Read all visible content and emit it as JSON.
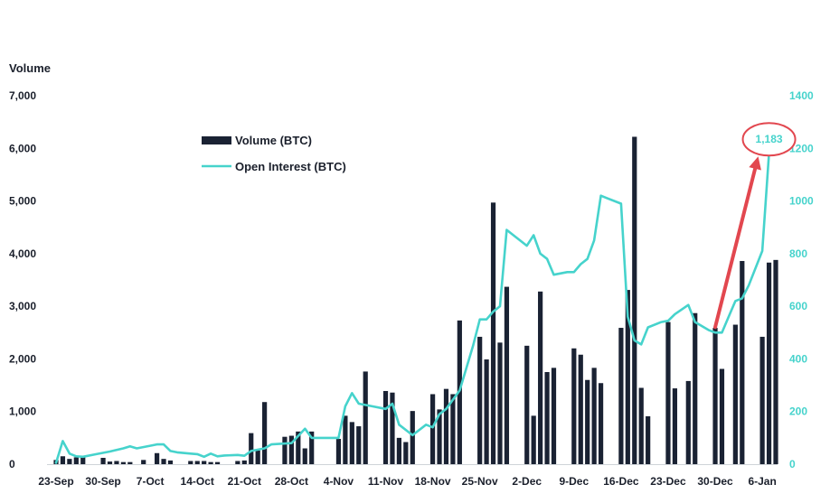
{
  "chart_data": {
    "type": "bar+line",
    "ylabel_left": "Volume",
    "ylim_left": [
      0,
      7000
    ],
    "yticks_left": [
      "0",
      "1,000",
      "2,000",
      "3,000",
      "4,000",
      "5,000",
      "6,000",
      "7,000"
    ],
    "ylim_right": [
      0,
      1400
    ],
    "yticks_right": [
      "0",
      "200",
      "400",
      "600",
      "800",
      "1000",
      "1200",
      "1400"
    ],
    "x_range_days": [
      0,
      107
    ],
    "xticks": [
      {
        "label": "23-Sep",
        "day": 0
      },
      {
        "label": "30-Sep",
        "day": 7
      },
      {
        "label": "7-Oct",
        "day": 14
      },
      {
        "label": "14-Oct",
        "day": 21
      },
      {
        "label": "21-Oct",
        "day": 28
      },
      {
        "label": "28-Oct",
        "day": 35
      },
      {
        "label": "4-Nov",
        "day": 42
      },
      {
        "label": "11-Nov",
        "day": 49
      },
      {
        "label": "18-Nov",
        "day": 56
      },
      {
        "label": "25-Nov",
        "day": 63
      },
      {
        "label": "2-Dec",
        "day": 70
      },
      {
        "label": "9-Dec",
        "day": 77
      },
      {
        "label": "16-Dec",
        "day": 84
      },
      {
        "label": "23-Dec",
        "day": 91
      },
      {
        "label": "30-Dec",
        "day": 98
      },
      {
        "label": "6-Jan",
        "day": 105
      }
    ],
    "legend": {
      "volume": "Volume (BTC)",
      "open_interest": "Open Interest (BTC)"
    },
    "colors": {
      "volume": "#1a2233",
      "open_interest": "#46d3cc",
      "arrow": "#e2474f",
      "callout_ring": "#e2474f"
    },
    "series_volume": [
      {
        "day": 0,
        "value": 80
      },
      {
        "day": 1,
        "value": 150
      },
      {
        "day": 2,
        "value": 100
      },
      {
        "day": 3,
        "value": 130
      },
      {
        "day": 4,
        "value": 140
      },
      {
        "day": 7,
        "value": 120
      },
      {
        "day": 8,
        "value": 50
      },
      {
        "day": 9,
        "value": 60
      },
      {
        "day": 10,
        "value": 40
      },
      {
        "day": 11,
        "value": 40
      },
      {
        "day": 13,
        "value": 80
      },
      {
        "day": 15,
        "value": 210
      },
      {
        "day": 16,
        "value": 100
      },
      {
        "day": 17,
        "value": 70
      },
      {
        "day": 20,
        "value": 60
      },
      {
        "day": 21,
        "value": 60
      },
      {
        "day": 22,
        "value": 60
      },
      {
        "day": 23,
        "value": 40
      },
      {
        "day": 24,
        "value": 40
      },
      {
        "day": 27,
        "value": 60
      },
      {
        "day": 28,
        "value": 70
      },
      {
        "day": 29,
        "value": 590
      },
      {
        "day": 30,
        "value": 260
      },
      {
        "day": 31,
        "value": 1180
      },
      {
        "day": 34,
        "value": 520
      },
      {
        "day": 35,
        "value": 540
      },
      {
        "day": 36,
        "value": 620
      },
      {
        "day": 37,
        "value": 300
      },
      {
        "day": 38,
        "value": 620
      },
      {
        "day": 42,
        "value": 480
      },
      {
        "day": 43,
        "value": 920
      },
      {
        "day": 44,
        "value": 800
      },
      {
        "day": 45,
        "value": 720
      },
      {
        "day": 46,
        "value": 1760
      },
      {
        "day": 49,
        "value": 1390
      },
      {
        "day": 50,
        "value": 1360
      },
      {
        "day": 51,
        "value": 500
      },
      {
        "day": 52,
        "value": 420
      },
      {
        "day": 53,
        "value": 1010
      },
      {
        "day": 56,
        "value": 1330
      },
      {
        "day": 57,
        "value": 1040
      },
      {
        "day": 58,
        "value": 1430
      },
      {
        "day": 59,
        "value": 1330
      },
      {
        "day": 60,
        "value": 2730
      },
      {
        "day": 63,
        "value": 2420
      },
      {
        "day": 64,
        "value": 1990
      },
      {
        "day": 65,
        "value": 4970
      },
      {
        "day": 66,
        "value": 2310
      },
      {
        "day": 67,
        "value": 3370
      },
      {
        "day": 70,
        "value": 2250
      },
      {
        "day": 71,
        "value": 920
      },
      {
        "day": 72,
        "value": 3280
      },
      {
        "day": 73,
        "value": 1750
      },
      {
        "day": 74,
        "value": 1830
      },
      {
        "day": 77,
        "value": 2200
      },
      {
        "day": 78,
        "value": 2080
      },
      {
        "day": 79,
        "value": 1600
      },
      {
        "day": 80,
        "value": 1830
      },
      {
        "day": 81,
        "value": 1540
      },
      {
        "day": 84,
        "value": 2590
      },
      {
        "day": 85,
        "value": 3310
      },
      {
        "day": 86,
        "value": 6220
      },
      {
        "day": 87,
        "value": 1450
      },
      {
        "day": 88,
        "value": 910
      },
      {
        "day": 91,
        "value": 2700
      },
      {
        "day": 92,
        "value": 1440
      },
      {
        "day": 94,
        "value": 1580
      },
      {
        "day": 95,
        "value": 2870
      },
      {
        "day": 98,
        "value": 2590
      },
      {
        "day": 99,
        "value": 1810
      },
      {
        "day": 101,
        "value": 2650
      },
      {
        "day": 102,
        "value": 3860
      },
      {
        "day": 105,
        "value": 2420
      },
      {
        "day": 106,
        "value": 3830
      },
      {
        "day": 107,
        "value": 3880
      }
    ],
    "series_open_interest": [
      {
        "day": 0,
        "value": 5
      },
      {
        "day": 1,
        "value": 88
      },
      {
        "day": 2,
        "value": 40
      },
      {
        "day": 3,
        "value": 30
      },
      {
        "day": 4,
        "value": 28
      },
      {
        "day": 6,
        "value": 38
      },
      {
        "day": 8,
        "value": 48
      },
      {
        "day": 10,
        "value": 60
      },
      {
        "day": 11,
        "value": 68
      },
      {
        "day": 12,
        "value": 60
      },
      {
        "day": 14,
        "value": 70
      },
      {
        "day": 15,
        "value": 75
      },
      {
        "day": 16,
        "value": 75
      },
      {
        "day": 17,
        "value": 50
      },
      {
        "day": 18,
        "value": 45
      },
      {
        "day": 20,
        "value": 40
      },
      {
        "day": 21,
        "value": 38
      },
      {
        "day": 22,
        "value": 28
      },
      {
        "day": 23,
        "value": 40
      },
      {
        "day": 24,
        "value": 30
      },
      {
        "day": 25,
        "value": 33
      },
      {
        "day": 27,
        "value": 35
      },
      {
        "day": 28,
        "value": 32
      },
      {
        "day": 29,
        "value": 50
      },
      {
        "day": 31,
        "value": 60
      },
      {
        "day": 32,
        "value": 75
      },
      {
        "day": 35,
        "value": 80
      },
      {
        "day": 37,
        "value": 135
      },
      {
        "day": 38,
        "value": 100
      },
      {
        "day": 39,
        "value": 100
      },
      {
        "day": 42,
        "value": 100
      },
      {
        "day": 43,
        "value": 220
      },
      {
        "day": 44,
        "value": 270
      },
      {
        "day": 45,
        "value": 230
      },
      {
        "day": 47,
        "value": 220
      },
      {
        "day": 49,
        "value": 210
      },
      {
        "day": 50,
        "value": 230
      },
      {
        "day": 51,
        "value": 150
      },
      {
        "day": 53,
        "value": 110
      },
      {
        "day": 55,
        "value": 150
      },
      {
        "day": 56,
        "value": 140
      },
      {
        "day": 57,
        "value": 190
      },
      {
        "day": 58,
        "value": 210
      },
      {
        "day": 60,
        "value": 280
      },
      {
        "day": 62,
        "value": 450
      },
      {
        "day": 63,
        "value": 550
      },
      {
        "day": 64,
        "value": 550
      },
      {
        "day": 65,
        "value": 580
      },
      {
        "day": 66,
        "value": 600
      },
      {
        "day": 67,
        "value": 890
      },
      {
        "day": 68,
        "value": 870
      },
      {
        "day": 70,
        "value": 830
      },
      {
        "day": 71,
        "value": 870
      },
      {
        "day": 72,
        "value": 800
      },
      {
        "day": 73,
        "value": 780
      },
      {
        "day": 74,
        "value": 720
      },
      {
        "day": 76,
        "value": 730
      },
      {
        "day": 77,
        "value": 730
      },
      {
        "day": 78,
        "value": 760
      },
      {
        "day": 79,
        "value": 780
      },
      {
        "day": 80,
        "value": 850
      },
      {
        "day": 81,
        "value": 1020
      },
      {
        "day": 82,
        "value": 1010
      },
      {
        "day": 84,
        "value": 990
      },
      {
        "day": 85,
        "value": 560
      },
      {
        "day": 86,
        "value": 470
      },
      {
        "day": 87,
        "value": 455
      },
      {
        "day": 88,
        "value": 520
      },
      {
        "day": 90,
        "value": 540
      },
      {
        "day": 91,
        "value": 545
      },
      {
        "day": 92,
        "value": 570
      },
      {
        "day": 94,
        "value": 605
      },
      {
        "day": 95,
        "value": 540
      },
      {
        "day": 97,
        "value": 510
      },
      {
        "day": 98,
        "value": 500
      },
      {
        "day": 99,
        "value": 500
      },
      {
        "day": 100,
        "value": 560
      },
      {
        "day": 101,
        "value": 620
      },
      {
        "day": 102,
        "value": 630
      },
      {
        "day": 103,
        "value": 680
      },
      {
        "day": 105,
        "value": 810
      },
      {
        "day": 106,
        "value": 1183
      }
    ],
    "annotation": {
      "label": "1,183",
      "value": 1183,
      "day": 106,
      "arrow_from_day": 98,
      "arrow_from_value": 500
    }
  }
}
